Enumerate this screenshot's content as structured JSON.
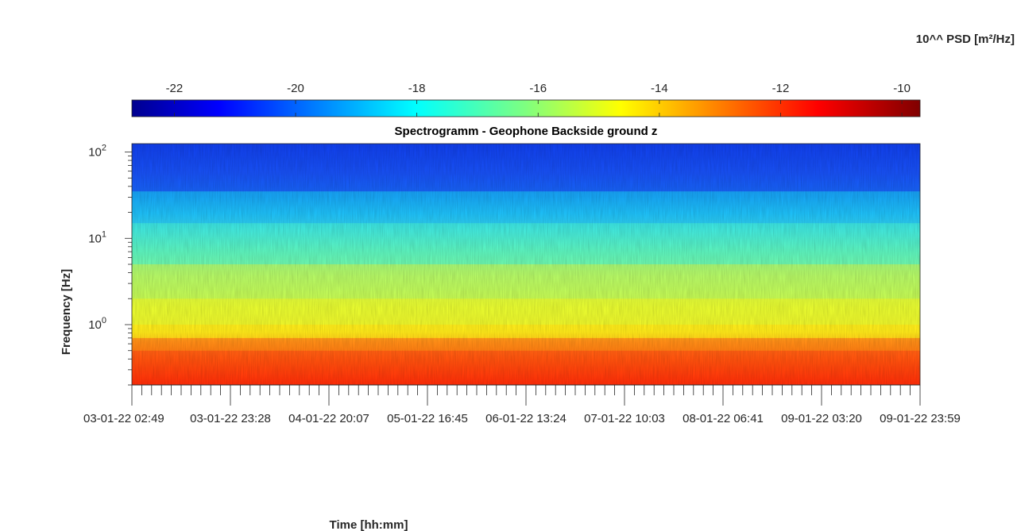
{
  "chart_data": {
    "type": "heatmap",
    "title": "Spectrogramm - Geophone Backside ground z",
    "xlabel": "Time [hh:mm]",
    "ylabel": "Frequency [Hz]",
    "colorbar": {
      "label": "10^^ PSD [m²/Hz]",
      "ticks": [
        "-22",
        "-20",
        "-18",
        "-16",
        "-14",
        "-12",
        "-10"
      ],
      "tick_values": [
        -22,
        -20,
        -18,
        -16,
        -14,
        -12,
        -10
      ],
      "range": [
        -22.7,
        -9.7
      ],
      "colormap": "jet"
    },
    "y_axis": {
      "scale": "log",
      "range": [
        0.2,
        125
      ],
      "ticks": [
        {
          "base": "10",
          "exp": "0",
          "value": 1
        },
        {
          "base": "10",
          "exp": "1",
          "value": 10
        },
        {
          "base": "10",
          "exp": "2",
          "value": 100
        }
      ]
    },
    "x_axis": {
      "range": [
        "03-01-22 02:49",
        "09-01-22 23:59"
      ],
      "tick_labels": [
        "03-01-22 02:49",
        "03-01-22 23:28",
        "04-01-22 20:07",
        "05-01-22 16:45",
        "06-01-22 13:24",
        "07-01-22 10:03",
        "08-01-22 06:41",
        "09-01-22 03:20",
        "09-01-22 23:59"
      ]
    },
    "bands": [
      {
        "from_hz": 0.2,
        "to_hz": 0.5,
        "level": -11.7
      },
      {
        "from_hz": 0.5,
        "to_hz": 0.7,
        "level": -12.6
      },
      {
        "from_hz": 0.7,
        "to_hz": 1.0,
        "level": -14.3
      },
      {
        "from_hz": 1.0,
        "to_hz": 2.0,
        "level": -15.0
      },
      {
        "from_hz": 2.0,
        "to_hz": 5.0,
        "level": -15.8
      },
      {
        "from_hz": 5.0,
        "to_hz": 15.0,
        "level": -17.4
      },
      {
        "from_hz": 15.0,
        "to_hz": 35.0,
        "level": -18.5
      },
      {
        "from_hz": 35.0,
        "to_hz": 125.0,
        "level": -20.3
      }
    ]
  }
}
